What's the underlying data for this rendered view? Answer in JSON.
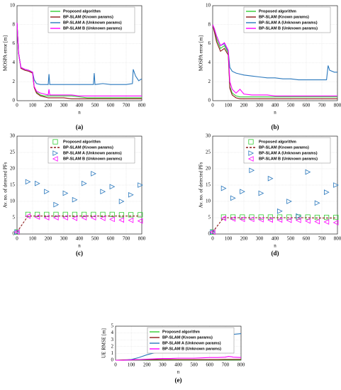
{
  "chart_data": [
    {
      "type": "line",
      "caption": "(a)",
      "xlabel": "n",
      "ylabel": "MOSPA error [m]",
      "legend": "upper right",
      "grid": true,
      "x": [
        0,
        10,
        25,
        50,
        75,
        100,
        110,
        125,
        150,
        175,
        200,
        205,
        210,
        250,
        300,
        350,
        400,
        450,
        490,
        495,
        500,
        550,
        600,
        650,
        700,
        740,
        745,
        760,
        780,
        800
      ],
      "xlim": [
        0,
        800
      ],
      "xticks": [
        0,
        100,
        200,
        300,
        400,
        500,
        600,
        700,
        800
      ],
      "ylim": [
        0,
        10
      ],
      "yticks": [
        0,
        2,
        4,
        6,
        8,
        10
      ],
      "series": [
        {
          "name": "Proposed algorithm",
          "color": "#33cc33",
          "values": [
            8.2,
            5,
            3.5,
            3.3,
            3.2,
            3.0,
            1.5,
            0.9,
            0.6,
            0.5,
            0.5,
            0.5,
            0.5,
            0.5,
            0.5,
            0.5,
            0.4,
            0.3,
            0.3,
            0.3,
            0.3,
            0.3,
            0.3,
            0.3,
            0.3,
            0.3,
            0.3,
            0.3,
            0.3,
            0.3
          ]
        },
        {
          "name": "BP-SLAM (Known params)",
          "color": "#8b1a1a",
          "values": [
            8.2,
            5,
            3.4,
            3.2,
            3.1,
            2.9,
            1.4,
            0.8,
            0.5,
            0.4,
            0.3,
            0.3,
            0.3,
            0.3,
            0.3,
            0.2,
            0.2,
            0.2,
            0.2,
            0.2,
            0.2,
            0.2,
            0.2,
            0.2,
            0.2,
            0.2,
            0.2,
            0.2,
            0.2,
            0.2
          ]
        },
        {
          "name": "BP-SLAM A (Unknown params)",
          "color": "#2a78bd",
          "values": [
            8.2,
            5,
            3.5,
            3.3,
            3.2,
            3.0,
            2.2,
            1.8,
            1.7,
            1.7,
            1.7,
            2.8,
            1.7,
            1.7,
            1.7,
            1.7,
            1.7,
            1.7,
            1.7,
            2.9,
            1.7,
            1.8,
            1.7,
            1.7,
            1.7,
            1.8,
            3.3,
            2.6,
            2.1,
            2.3
          ]
        },
        {
          "name": "BP-SLAM B (Unknown params)",
          "color": "#ff00ff",
          "values": [
            8.2,
            5,
            3.5,
            3.3,
            3.2,
            3.0,
            1.5,
            1.0,
            0.8,
            0.7,
            0.6,
            1.2,
            0.6,
            0.6,
            0.6,
            0.6,
            0.5,
            0.5,
            0.5,
            0.5,
            0.5,
            0.5,
            0.5,
            0.5,
            0.5,
            0.5,
            0.5,
            0.5,
            0.5,
            0.5
          ]
        }
      ]
    },
    {
      "type": "line",
      "caption": "(b)",
      "xlabel": "n",
      "ylabel": "MOSPA error [m]",
      "legend": "upper right",
      "grid": true,
      "x": [
        0,
        10,
        25,
        50,
        75,
        100,
        110,
        125,
        150,
        175,
        200,
        250,
        300,
        350,
        400,
        450,
        500,
        550,
        600,
        650,
        700,
        730,
        740,
        750,
        780,
        800
      ],
      "xlim": [
        0,
        800
      ],
      "xticks": [
        0,
        100,
        200,
        300,
        400,
        500,
        600,
        700,
        800
      ],
      "ylim": [
        0,
        10
      ],
      "yticks": [
        0,
        2,
        4,
        6,
        8,
        10
      ],
      "series": [
        {
          "name": "Proposed algorithm",
          "color": "#33cc33",
          "values": [
            8,
            7.5,
            6.5,
            5.5,
            5.8,
            5.0,
            1.5,
            0.8,
            0.5,
            0.4,
            0.4,
            0.4,
            0.4,
            0.4,
            0.4,
            0.4,
            0.4,
            0.4,
            0.4,
            0.4,
            0.4,
            0.4,
            0.4,
            0.4,
            0.4,
            0.4
          ]
        },
        {
          "name": "BP-SLAM (Known params)",
          "color": "#8b1a1a",
          "values": [
            8,
            7.3,
            6.2,
            5.2,
            5.5,
            4.8,
            1.3,
            0.6,
            0.3,
            0.2,
            0.2,
            0.2,
            0.2,
            0.2,
            0.2,
            0.2,
            0.2,
            0.2,
            0.2,
            0.2,
            0.2,
            0.2,
            0.2,
            0.2,
            0.2,
            0.2
          ]
        },
        {
          "name": "BP-SLAM A (Unknown params)",
          "color": "#2a78bd",
          "values": [
            8,
            7.6,
            6.8,
            5.8,
            6.0,
            5.2,
            3.5,
            3.1,
            2.9,
            2.8,
            2.7,
            2.6,
            2.5,
            2.4,
            2.4,
            2.3,
            2.3,
            2.2,
            2.2,
            2.2,
            2.2,
            2.2,
            3.7,
            3.2,
            3.0,
            3.0
          ]
        },
        {
          "name": "BP-SLAM B (Unknown params)",
          "color": "#ff00ff",
          "values": [
            8,
            7.6,
            6.8,
            5.8,
            6.1,
            5.3,
            2.0,
            1.2,
            0.8,
            1.2,
            0.7,
            0.6,
            0.6,
            0.6,
            0.5,
            0.5,
            0.5,
            0.5,
            0.5,
            0.5,
            0.5,
            0.5,
            0.5,
            0.5,
            0.5,
            0.5
          ]
        }
      ]
    },
    {
      "type": "scatter",
      "caption": "(c)",
      "xlabel": "n",
      "ylabel": "Av. no. of detected PFs",
      "legend": "upper right",
      "grid": true,
      "x": [
        0,
        70,
        130,
        190,
        250,
        310,
        370,
        430,
        490,
        550,
        610,
        670,
        730,
        790
      ],
      "xlim": [
        0,
        800
      ],
      "xticks": [
        0,
        100,
        200,
        300,
        400,
        500,
        600,
        700,
        800
      ],
      "ylim": [
        0,
        30
      ],
      "yticks": [
        0,
        5,
        10,
        15,
        20,
        25,
        30
      ],
      "series": [
        {
          "name": "Proposed algorithm",
          "color": "#33cc33",
          "marker": "square",
          "values": [
            0.6,
            6,
            6,
            6,
            6,
            6,
            6,
            6,
            6,
            6,
            6,
            5.9,
            5.9,
            5.9
          ]
        },
        {
          "name": "BP-SLAM (Known params)",
          "color": "#8b1a1a",
          "marker": "dashed",
          "values": [
            0.6,
            5.5,
            5.5,
            5.5,
            5.5,
            5.5,
            5.5,
            5.5,
            5.5,
            5.5,
            5.5,
            5.5,
            5.5,
            5.5
          ]
        },
        {
          "name": "BP-SLAM A (Unknown params)",
          "color": "#2a78bd",
          "marker": "triangle-right",
          "values": [
            0.6,
            16,
            15.5,
            13,
            9,
            12.5,
            10.5,
            15.5,
            18.5,
            13,
            14.5,
            10,
            12,
            15
          ]
        },
        {
          "name": "BP-SLAM B (Unknown params)",
          "color": "#ff00ff",
          "marker": "triangle-left",
          "values": [
            0.6,
            5.5,
            5.2,
            5,
            5,
            5,
            4.8,
            5,
            5,
            4.8,
            4.5,
            4.3,
            4.2,
            4
          ]
        }
      ]
    },
    {
      "type": "scatter",
      "caption": "(d)",
      "xlabel": "n",
      "ylabel": "Av. no. of detected PFs",
      "legend": "upper right",
      "grid": true,
      "x": [
        0,
        70,
        130,
        190,
        250,
        310,
        370,
        430,
        490,
        550,
        610,
        670,
        730,
        790
      ],
      "xlim": [
        0,
        800
      ],
      "xticks": [
        0,
        100,
        200,
        300,
        400,
        500,
        600,
        700,
        800
      ],
      "ylim": [
        0,
        30
      ],
      "yticks": [
        0,
        5,
        10,
        15,
        20,
        25,
        30
      ],
      "series": [
        {
          "name": "Proposed algorithm",
          "color": "#33cc33",
          "marker": "square",
          "values": [
            0.6,
            5.2,
            5.2,
            5.2,
            5.2,
            5.2,
            5.2,
            5.2,
            5.2,
            5.2,
            5.2,
            5.1,
            5.1,
            5.1
          ]
        },
        {
          "name": "BP-SLAM (Known params)",
          "color": "#8b1a1a",
          "marker": "dashed",
          "values": [
            0.6,
            5,
            5,
            5,
            5,
            5,
            5,
            5,
            5,
            5,
            5,
            4.9,
            4.9,
            4.9
          ]
        },
        {
          "name": "BP-SLAM A (Unknown params)",
          "color": "#2a78bd",
          "marker": "triangle-right",
          "values": [
            0.6,
            14,
            11,
            13,
            19.5,
            12.5,
            17,
            7,
            10,
            5.5,
            19,
            9.5,
            12.8,
            15
          ]
        },
        {
          "name": "BP-SLAM B (Unknown params)",
          "color": "#ff00ff",
          "marker": "triangle-left",
          "values": [
            0.6,
            4.8,
            4.6,
            4.5,
            4.5,
            4.4,
            4.3,
            4.3,
            4.2,
            4.2,
            4,
            3.8,
            3.7,
            3.5
          ]
        }
      ]
    },
    {
      "type": "line",
      "caption": "(e)",
      "xlabel": "n",
      "ylabel": "UE RMSE [m]",
      "legend": "upper right",
      "grid": true,
      "x": [
        0,
        50,
        100,
        150,
        200,
        250,
        300,
        350,
        400,
        450,
        500,
        550,
        600,
        650,
        700,
        720,
        740,
        750,
        800
      ],
      "xlim": [
        0,
        800
      ],
      "xticks": [
        0,
        100,
        200,
        300,
        400,
        500,
        600,
        700,
        800
      ],
      "ylim": [
        0,
        5
      ],
      "yticks": [
        0,
        1,
        2,
        3,
        4,
        5
      ],
      "series": [
        {
          "name": "Proposed algorithm",
          "color": "#33cc33",
          "values": [
            0,
            0.03,
            0.04,
            0.05,
            0.05,
            0.05,
            0.05,
            0.05,
            0.05,
            0.05,
            0.05,
            0.05,
            0.05,
            0.05,
            0.05,
            0.05,
            0.05,
            0.05,
            0.05
          ]
        },
        {
          "name": "BP-SLAM (Known params)",
          "color": "#8b1a1a",
          "values": [
            0,
            0.05,
            0.08,
            0.1,
            0.1,
            0.1,
            0.1,
            0.1,
            0.1,
            0.1,
            0.1,
            0.1,
            0.1,
            0.1,
            0.12,
            0.12,
            0.12,
            0.12,
            0.12
          ]
        },
        {
          "name": "BP-SLAM A (Unknown params)",
          "color": "#2a78bd",
          "values": [
            0,
            0,
            0.1,
            0.4,
            0.8,
            1.1,
            1.4,
            1.3,
            1.2,
            1.5,
            1.9,
            2.0,
            2.0,
            2.3,
            2.5,
            3.0,
            4.1,
            3.8,
            3.9
          ]
        },
        {
          "name": "BP-SLAM B (Unknown params)",
          "color": "#ff00ff",
          "values": [
            0,
            0,
            0.05,
            0.1,
            0.15,
            0.2,
            0.25,
            0.25,
            0.3,
            0.3,
            0.3,
            0.35,
            0.4,
            0.4,
            0.45,
            0.55,
            0.5,
            0.45,
            0.4
          ]
        }
      ]
    }
  ]
}
